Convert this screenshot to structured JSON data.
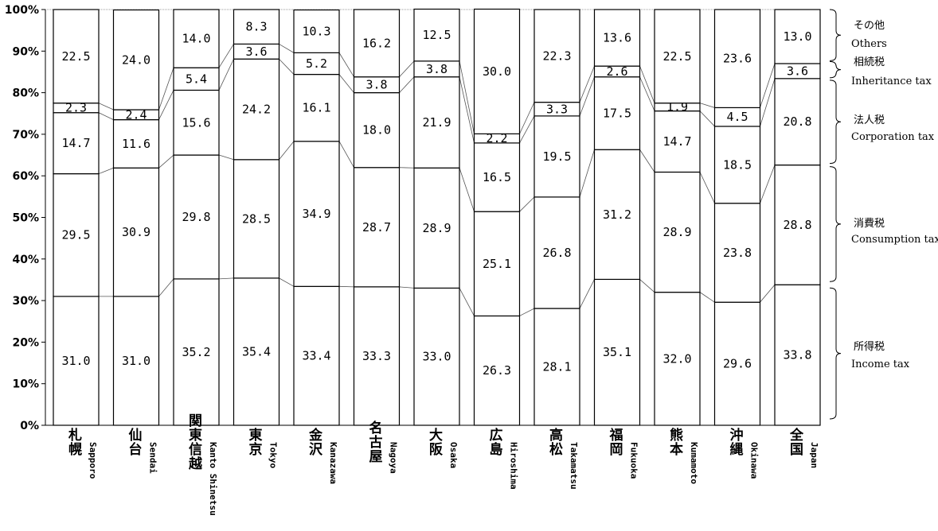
{
  "chart_data": {
    "type": "bar",
    "stacked": true,
    "percent": true,
    "categories": [
      {
        "jp": "札幌",
        "en": "Sapporo"
      },
      {
        "jp": "仙台",
        "en": "Sendai"
      },
      {
        "jp": "関東信越",
        "en": "Kanto Shinetsu"
      },
      {
        "jp": "東京",
        "en": "Tokyo"
      },
      {
        "jp": "金沢",
        "en": "Kanazawa"
      },
      {
        "jp": "名古屋",
        "en": "Nagoya"
      },
      {
        "jp": "大阪",
        "en": "Osaka"
      },
      {
        "jp": "広島",
        "en": "Hiroshima"
      },
      {
        "jp": "高松",
        "en": "Takamatsu"
      },
      {
        "jp": "福岡",
        "en": "Fukuoka"
      },
      {
        "jp": "熊本",
        "en": "Kumamoto"
      },
      {
        "jp": "沖縄",
        "en": "Okinawa"
      },
      {
        "jp": "全国",
        "en": "Japan"
      }
    ],
    "series": [
      {
        "name": "所得税 Income tax",
        "jp": "所得税",
        "en": "Income tax",
        "values": [
          31.0,
          31.0,
          35.2,
          35.4,
          33.4,
          33.3,
          33.0,
          26.3,
          28.1,
          35.1,
          32.0,
          29.6,
          33.8
        ]
      },
      {
        "name": "消費税 Consumption tax",
        "jp": "消費税",
        "en": "Consumption tax",
        "values": [
          29.5,
          30.9,
          29.8,
          28.5,
          34.9,
          28.7,
          28.9,
          25.1,
          26.8,
          31.2,
          28.9,
          23.8,
          28.8
        ]
      },
      {
        "name": "法人税 Corporation tax",
        "jp": "法人税",
        "en": "Corporation tax",
        "values": [
          14.7,
          11.6,
          15.6,
          24.2,
          16.1,
          18.0,
          21.9,
          16.5,
          19.5,
          17.5,
          14.7,
          18.5,
          20.8
        ]
      },
      {
        "name": "相続税 Inheritance tax",
        "jp": "相続税",
        "en": "Inheritance tax",
        "values": [
          2.3,
          2.4,
          5.4,
          3.6,
          5.2,
          3.8,
          3.8,
          2.2,
          3.3,
          2.6,
          1.9,
          4.5,
          3.6
        ]
      },
      {
        "name": "その他 Others",
        "jp": "その他",
        "en": "Others",
        "values": [
          22.5,
          24.0,
          14.0,
          8.3,
          10.3,
          16.2,
          12.5,
          30.0,
          22.3,
          13.6,
          22.5,
          23.6,
          13.0
        ]
      }
    ],
    "yticks": [
      "0%",
      "10%",
      "20%",
      "30%",
      "40%",
      "50%",
      "60%",
      "70%",
      "80%",
      "90%",
      "100%"
    ],
    "ylim": [
      0,
      100
    ],
    "grid": false,
    "legend_placement": "right"
  }
}
